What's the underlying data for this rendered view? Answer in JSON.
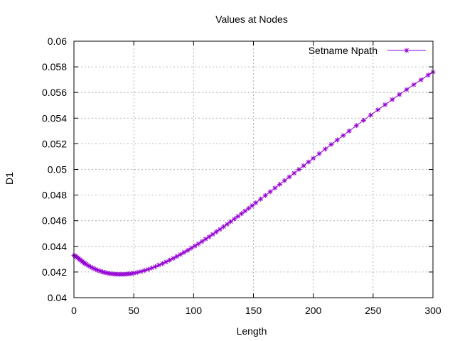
{
  "chart_data": {
    "type": "line",
    "title": "Values at Nodes",
    "xlabel": "Length",
    "ylabel": "D1",
    "xlim": [
      0,
      300
    ],
    "ylim": [
      0.04,
      0.06
    ],
    "x_ticks": [
      0,
      50,
      100,
      150,
      200,
      250,
      300
    ],
    "y_ticks": [
      0.04,
      0.042,
      0.044,
      0.046,
      0.048,
      0.05,
      0.052,
      0.054,
      0.056,
      0.058,
      0.06
    ],
    "x_tick_labels": [
      "0",
      "50",
      "100",
      "150",
      "200",
      "250",
      "300"
    ],
    "y_tick_labels": [
      "0.04",
      "0.042",
      "0.044",
      "0.046",
      "0.048",
      "0.05",
      "0.052",
      "0.054",
      "0.056",
      "0.058",
      "0.06"
    ],
    "grid": true,
    "legend_position": "top-right",
    "series": [
      {
        "name": "Setname Npath",
        "color": "#9400d3",
        "marker": "plus-cross",
        "x": [
          0,
          1,
          2,
          3,
          4,
          5,
          6,
          7,
          8,
          9,
          10,
          12,
          14,
          16,
          18,
          20,
          22,
          24,
          26,
          28,
          30,
          32,
          34,
          36,
          38,
          40,
          42,
          44,
          46,
          48,
          50,
          53,
          56,
          59,
          62,
          65,
          68,
          71,
          74,
          77,
          80,
          83,
          86,
          89,
          92,
          95,
          98,
          101,
          104,
          107,
          110,
          113,
          116,
          119,
          122,
          125,
          128,
          131,
          134,
          137,
          140,
          143,
          146,
          149,
          152,
          156,
          160,
          164,
          168,
          172,
          176,
          180,
          184,
          188,
          192,
          196,
          200,
          205,
          210,
          215,
          220,
          225,
          230,
          236,
          242,
          248,
          254,
          260,
          266,
          272,
          278,
          284,
          290,
          296,
          300
        ],
        "y": [
          0.0433,
          0.04325,
          0.0432,
          0.04312,
          0.04305,
          0.04297,
          0.0429,
          0.04282,
          0.04275,
          0.04268,
          0.04262,
          0.0425,
          0.0424,
          0.0423,
          0.04222,
          0.04214,
          0.04207,
          0.04201,
          0.04196,
          0.04192,
          0.04188,
          0.04186,
          0.04184,
          0.04183,
          0.04182,
          0.04182,
          0.04183,
          0.04184,
          0.04186,
          0.04188,
          0.04191,
          0.04197,
          0.04204,
          0.04212,
          0.04221,
          0.04231,
          0.04242,
          0.04254,
          0.04266,
          0.04279,
          0.04293,
          0.04307,
          0.04322,
          0.04337,
          0.04353,
          0.04369,
          0.04386,
          0.04403,
          0.0442,
          0.04438,
          0.04457,
          0.04475,
          0.04494,
          0.04514,
          0.04533,
          0.04553,
          0.04573,
          0.04593,
          0.04614,
          0.04634,
          0.04655,
          0.04676,
          0.04697,
          0.04718,
          0.0474,
          0.04769,
          0.04797,
          0.04826,
          0.04855,
          0.04884,
          0.04913,
          0.04942,
          0.04971,
          0.05,
          0.05029,
          0.05058,
          0.05087,
          0.05123,
          0.05159,
          0.05195,
          0.0523,
          0.05265,
          0.053,
          0.05342,
          0.05383,
          0.05424,
          0.05465,
          0.05505,
          0.05545,
          0.05584,
          0.05623,
          0.05661,
          0.05699,
          0.05736,
          0.0576
        ]
      }
    ]
  }
}
